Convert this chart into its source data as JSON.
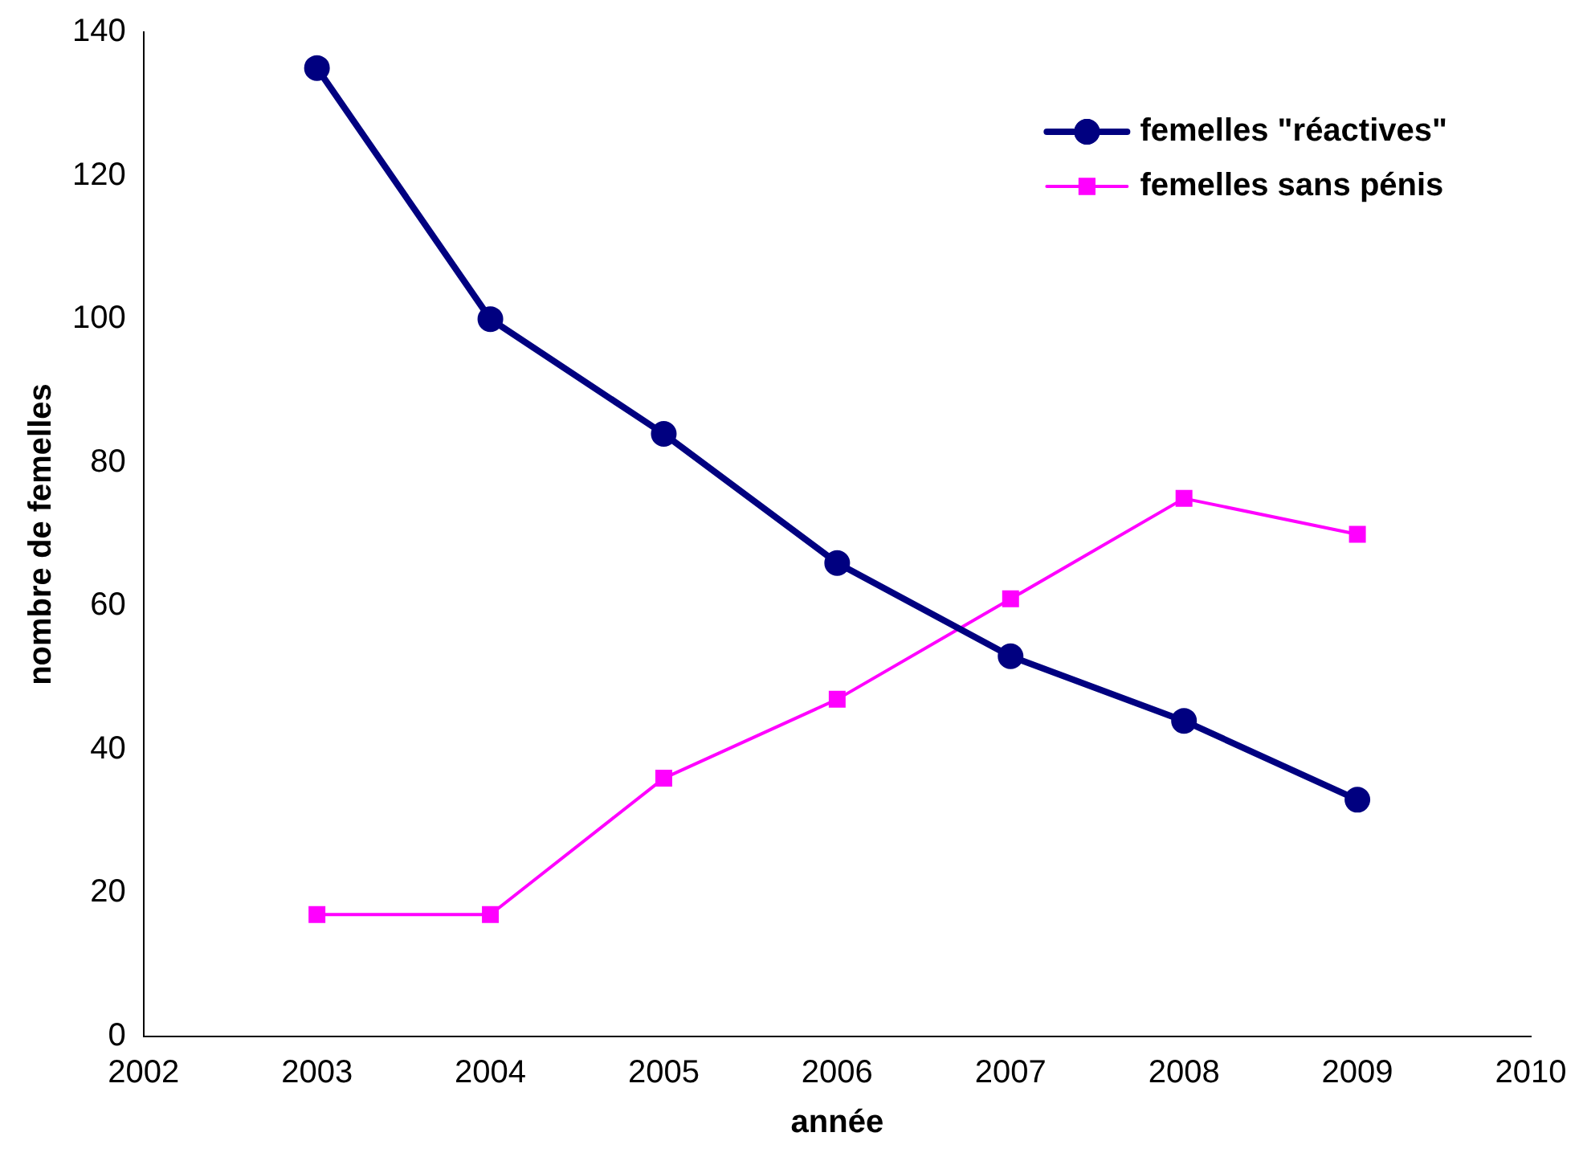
{
  "chart_data": {
    "type": "line",
    "xlabel": "année",
    "ylabel": "nombre de femelles",
    "x": [
      2003,
      2004,
      2005,
      2006,
      2007,
      2008,
      2009
    ],
    "series": [
      {
        "name": "femelles \"réactives\"",
        "color": "#000080",
        "marker": "circle",
        "values": [
          135,
          100,
          84,
          66,
          53,
          44,
          33
        ]
      },
      {
        "name": "femelles sans pénis",
        "color": "#ff00ff",
        "marker": "square",
        "values": [
          17,
          17,
          36,
          47,
          61,
          75,
          70
        ]
      }
    ],
    "xlim": [
      2002,
      2010
    ],
    "xticks": [
      2002,
      2003,
      2004,
      2005,
      2006,
      2007,
      2008,
      2009,
      2010
    ],
    "ylim": [
      0,
      140
    ],
    "yticks": [
      0,
      20,
      40,
      60,
      80,
      100,
      120,
      140
    ],
    "grid": false,
    "legend": "top right",
    "line_style": "solid"
  }
}
